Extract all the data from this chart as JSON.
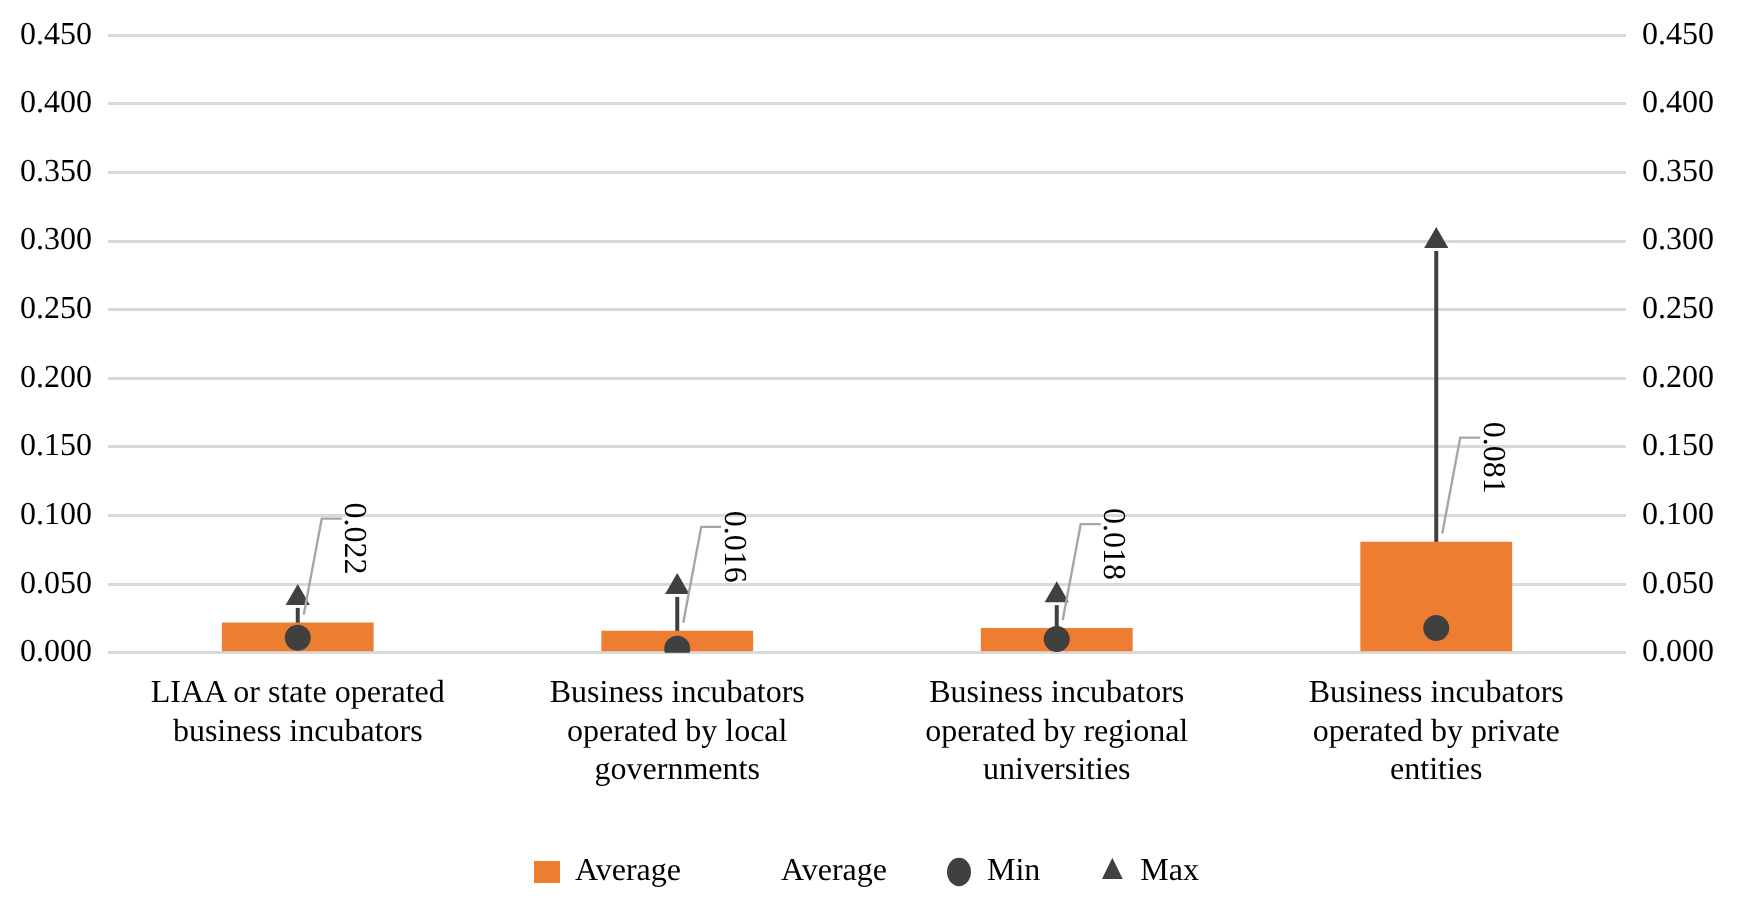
{
  "chart_data": {
    "type": "bar",
    "categories": [
      "LIAA or state operated business incubators",
      "Business incubators operated by local governments",
      "Business incubators operated by regional universities",
      "Business incubators operated by private entities"
    ],
    "series": [
      {
        "name": "Average",
        "color": "#ed7d31",
        "values": [
          0.022,
          0.016,
          0.018,
          0.081
        ],
        "value_labels": [
          "0.022",
          "0.016",
          "0.018",
          "0.081"
        ]
      },
      {
        "name": "Average",
        "type": "line",
        "values": [
          null,
          null,
          null,
          null
        ]
      },
      {
        "name": "Min",
        "type": "scatter",
        "marker": "circle",
        "color": "#404040",
        "values": [
          0.011,
          0.003,
          0.01,
          0.018
        ]
      },
      {
        "name": "Max",
        "type": "scatter",
        "marker": "triangle",
        "color": "#404040",
        "values": [
          0.04,
          0.048,
          0.042,
          0.3
        ]
      }
    ],
    "ylim": [
      0,
      0.45
    ],
    "yticks": [
      {
        "value": 0,
        "label": "0.000"
      },
      {
        "value": 0.05,
        "label": "0.050"
      },
      {
        "value": 0.1,
        "label": "0.100"
      },
      {
        "value": 0.15,
        "label": "0.150"
      },
      {
        "value": 0.2,
        "label": "0.200"
      },
      {
        "value": 0.25,
        "label": "0.250"
      },
      {
        "value": 0.3,
        "label": "0.300"
      },
      {
        "value": 0.35,
        "label": "0.350"
      },
      {
        "value": 0.4,
        "label": "0.400"
      },
      {
        "value": 0.45,
        "label": "0.450"
      }
    ],
    "y2lim": [
      0,
      0.45
    ],
    "y2ticks": [
      {
        "value": 0,
        "label": "0.000"
      },
      {
        "value": 0.05,
        "label": "0.050"
      },
      {
        "value": 0.1,
        "label": "0.100"
      },
      {
        "value": 0.15,
        "label": "0.150"
      },
      {
        "value": 0.2,
        "label": "0.200"
      },
      {
        "value": 0.25,
        "label": "0.250"
      },
      {
        "value": 0.3,
        "label": "0.300"
      },
      {
        "value": 0.35,
        "label": "0.350"
      },
      {
        "value": 0.4,
        "label": "0.400"
      },
      {
        "value": 0.45,
        "label": "0.450"
      }
    ],
    "grid": "y",
    "legend": "bottom"
  }
}
